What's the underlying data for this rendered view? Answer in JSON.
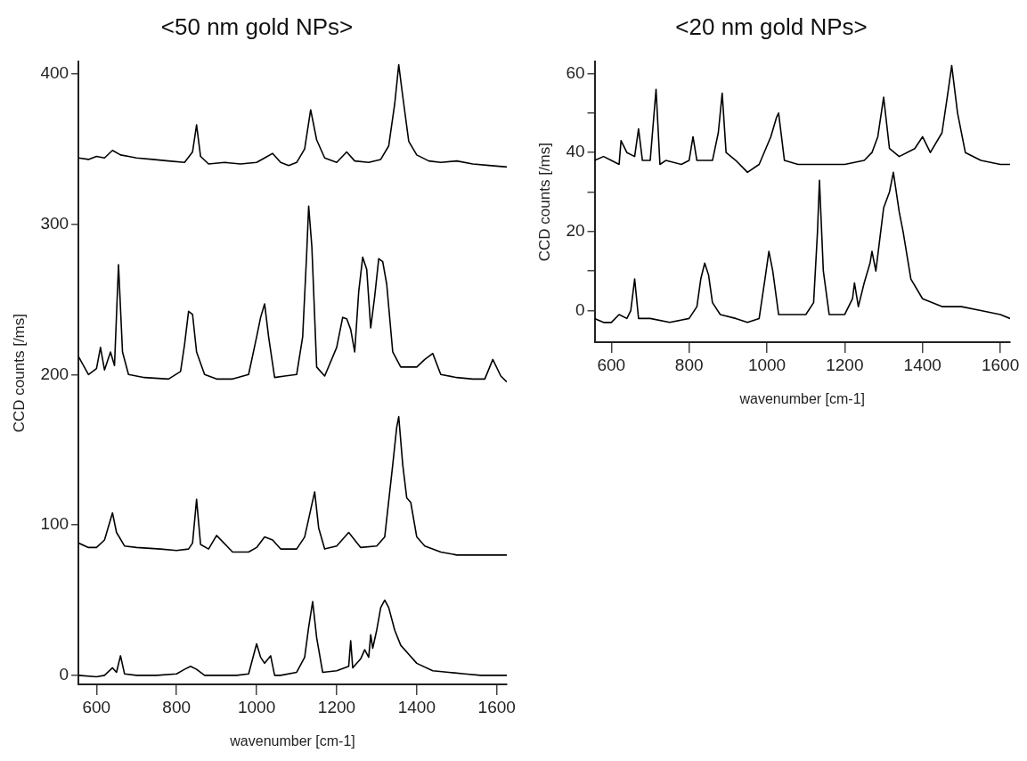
{
  "chart_data": [
    {
      "type": "line",
      "title": "<50 nm gold NPs>",
      "xlabel": "wavenumber [cm-1]",
      "ylabel": "CCD counts [/ms]",
      "xlim": [
        555,
        1625
      ],
      "xticks": [
        600,
        800,
        1000,
        1200,
        1400,
        1600
      ],
      "ylim": [
        -6,
        408
      ],
      "yticks": [
        0,
        100,
        200,
        300,
        400
      ],
      "grid": false,
      "legend": false,
      "marker": "none",
      "line_style": "solid",
      "series": [
        {
          "color": "#000000",
          "x": [
            555,
            580,
            600,
            620,
            640,
            660,
            680,
            700,
            740,
            780,
            820,
            840,
            850,
            860,
            880,
            920,
            960,
            1000,
            1020,
            1040,
            1060,
            1080,
            1100,
            1120,
            1135,
            1150,
            1170,
            1200,
            1225,
            1245,
            1280,
            1310,
            1330,
            1345,
            1355,
            1365,
            1380,
            1400,
            1430,
            1460,
            1500,
            1540,
            1580,
            1625
          ],
          "values": [
            344,
            343,
            345,
            344,
            349,
            346,
            345,
            344,
            343,
            342,
            341,
            348,
            366,
            345,
            340,
            341,
            340,
            341,
            344,
            347,
            341,
            339,
            341,
            350,
            376,
            356,
            344,
            341,
            348,
            342,
            341,
            343,
            352,
            380,
            406,
            385,
            355,
            346,
            342,
            341,
            342,
            340,
            339,
            338
          ]
        },
        {
          "color": "#000000",
          "x": [
            555,
            580,
            600,
            610,
            620,
            635,
            645,
            655,
            665,
            680,
            720,
            780,
            810,
            820,
            830,
            840,
            850,
            870,
            900,
            940,
            980,
            1000,
            1010,
            1020,
            1030,
            1045,
            1070,
            1100,
            1115,
            1125,
            1130,
            1138,
            1150,
            1170,
            1200,
            1215,
            1225,
            1235,
            1245,
            1255,
            1265,
            1275,
            1285,
            1295,
            1305,
            1315,
            1325,
            1340,
            1360,
            1400,
            1420,
            1440,
            1460,
            1500,
            1540,
            1570,
            1590,
            1610,
            1625
          ],
          "values": [
            212,
            200,
            204,
            218,
            203,
            215,
            206,
            273,
            215,
            200,
            198,
            197,
            202,
            220,
            242,
            240,
            215,
            200,
            197,
            197,
            200,
            225,
            238,
            247,
            225,
            198,
            199,
            200,
            225,
            280,
            312,
            285,
            205,
            199,
            218,
            238,
            237,
            230,
            215,
            255,
            278,
            270,
            231,
            252,
            277,
            275,
            260,
            215,
            205,
            205,
            210,
            214,
            200,
            198,
            197,
            197,
            210,
            199,
            195
          ]
        },
        {
          "color": "#000000",
          "x": [
            555,
            580,
            600,
            620,
            640,
            650,
            670,
            700,
            760,
            800,
            830,
            840,
            850,
            860,
            880,
            900,
            940,
            980,
            1000,
            1020,
            1040,
            1060,
            1100,
            1120,
            1135,
            1145,
            1155,
            1170,
            1200,
            1230,
            1260,
            1300,
            1320,
            1340,
            1350,
            1355,
            1365,
            1375,
            1385,
            1400,
            1420,
            1460,
            1500,
            1560,
            1625
          ],
          "values": [
            88,
            85,
            85,
            90,
            108,
            95,
            86,
            85,
            84,
            83,
            84,
            88,
            117,
            87,
            84,
            93,
            82,
            82,
            85,
            92,
            90,
            84,
            84,
            92,
            110,
            122,
            98,
            84,
            86,
            95,
            85,
            86,
            92,
            140,
            165,
            172,
            140,
            118,
            115,
            92,
            86,
            82,
            80,
            80,
            80
          ]
        },
        {
          "color": "#000000",
          "x": [
            555,
            600,
            620,
            640,
            650,
            660,
            670,
            700,
            750,
            800,
            820,
            835,
            850,
            870,
            900,
            950,
            980,
            1000,
            1010,
            1020,
            1035,
            1045,
            1060,
            1100,
            1120,
            1130,
            1140,
            1150,
            1165,
            1200,
            1230,
            1235,
            1240,
            1260,
            1270,
            1280,
            1285,
            1290,
            1300,
            1310,
            1320,
            1330,
            1345,
            1360,
            1380,
            1400,
            1440,
            1480,
            1520,
            1560,
            1600,
            1625
          ],
          "values": [
            0,
            -1,
            0,
            5,
            2,
            13,
            1,
            0,
            0,
            1,
            4,
            6,
            4,
            0,
            0,
            0,
            1,
            21,
            12,
            8,
            13,
            0,
            0,
            2,
            12,
            32,
            49,
            25,
            2,
            3,
            6,
            23,
            5,
            11,
            17,
            12,
            27,
            18,
            30,
            45,
            50,
            45,
            30,
            20,
            14,
            8,
            3,
            2,
            1,
            0,
            0,
            0
          ]
        }
      ]
    },
    {
      "type": "line",
      "title": "<20 nm gold NPs>",
      "xlabel": "wavenumber [cm-1]",
      "ylabel": "CCD counts [/ms]",
      "xlim": [
        557,
        1625
      ],
      "xticks": [
        600,
        800,
        1000,
        1200,
        1400,
        1600
      ],
      "ylim": [
        -8,
        63
      ],
      "yticks": [
        0,
        {
          "value": 10,
          "label": null
        },
        20,
        {
          "value": 30,
          "label": null
        },
        40,
        {
          "value": 50,
          "label": null
        },
        60
      ],
      "grid": false,
      "legend": false,
      "marker": "none",
      "line_style": "solid",
      "series": [
        {
          "color": "#000000",
          "x": [
            557,
            580,
            600,
            620,
            625,
            640,
            660,
            670,
            680,
            700,
            715,
            725,
            740,
            780,
            800,
            810,
            820,
            860,
            875,
            885,
            895,
            920,
            950,
            980,
            1010,
            1025,
            1030,
            1045,
            1080,
            1150,
            1200,
            1250,
            1270,
            1285,
            1300,
            1315,
            1340,
            1380,
            1400,
            1420,
            1450,
            1465,
            1475,
            1490,
            1510,
            1550,
            1600,
            1625
          ],
          "values": [
            38,
            39,
            38,
            37,
            43,
            40,
            39,
            46,
            38,
            38,
            56,
            37,
            38,
            37,
            38,
            44,
            38,
            38,
            45,
            55,
            40,
            38,
            35,
            37,
            44,
            49,
            50,
            38,
            37,
            37,
            37,
            38,
            40,
            44,
            54,
            41,
            39,
            41,
            44,
            40,
            45,
            55,
            62,
            50,
            40,
            38,
            37,
            37
          ]
        },
        {
          "color": "#000000",
          "x": [
            557,
            580,
            600,
            620,
            640,
            650,
            660,
            670,
            700,
            750,
            800,
            820,
            830,
            840,
            850,
            860,
            880,
            920,
            950,
            980,
            995,
            1005,
            1015,
            1030,
            1060,
            1100,
            1120,
            1130,
            1135,
            1145,
            1160,
            1200,
            1220,
            1225,
            1235,
            1250,
            1265,
            1270,
            1280,
            1290,
            1300,
            1315,
            1325,
            1340,
            1350,
            1370,
            1400,
            1450,
            1500,
            1550,
            1600,
            1625
          ],
          "values": [
            -2,
            -3,
            -3,
            -1,
            -2,
            0,
            8,
            -2,
            -2,
            -3,
            -2,
            1,
            8,
            12,
            9,
            2,
            -1,
            -2,
            -3,
            -2,
            8,
            15,
            10,
            -1,
            -1,
            -1,
            2,
            20,
            33,
            10,
            -1,
            -1,
            3,
            7,
            1,
            7,
            12,
            15,
            10,
            18,
            26,
            30,
            35,
            25,
            20,
            8,
            3,
            1,
            1,
            0,
            -1,
            -2
          ]
        }
      ]
    }
  ]
}
